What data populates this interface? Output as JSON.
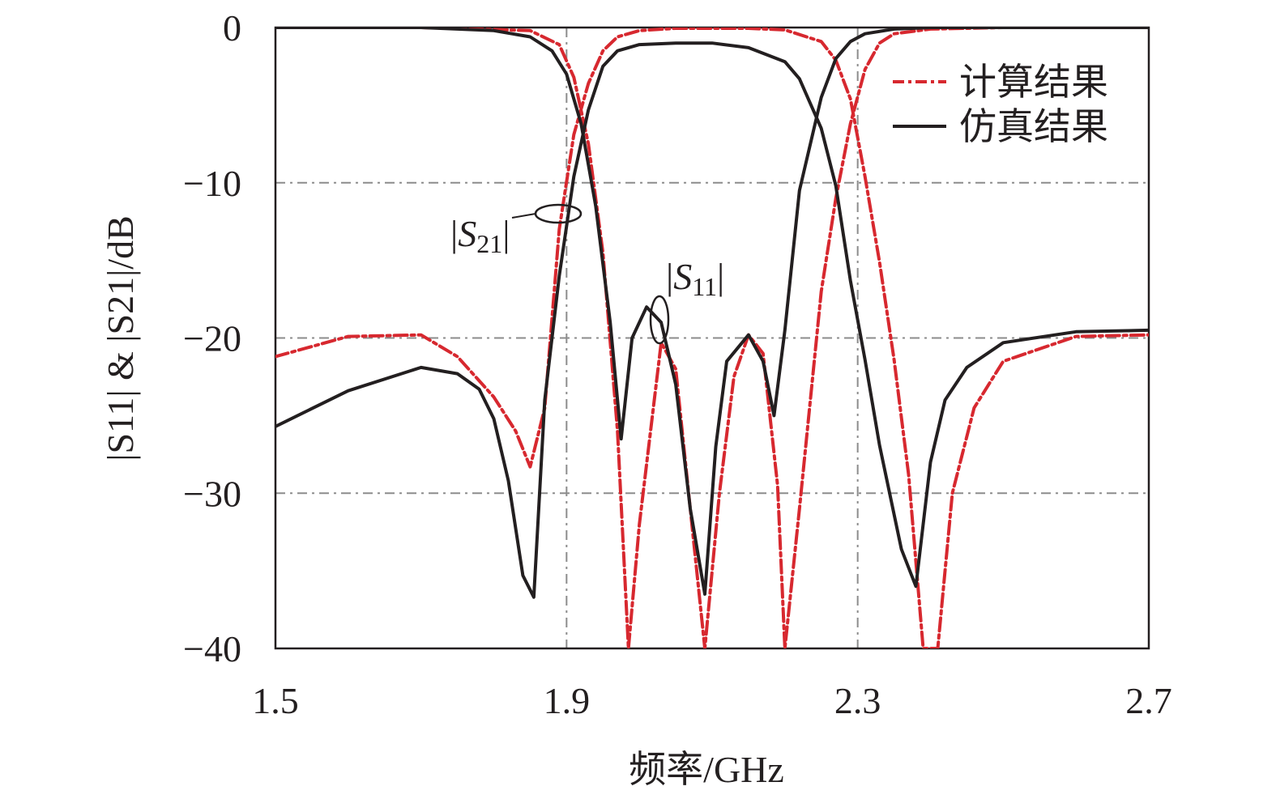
{
  "chart_data": {
    "type": "line",
    "xlabel": "频率/GHz",
    "ylabel": "|S11| & |S21|/dB",
    "xlim": [
      1.5,
      2.7
    ],
    "ylim": [
      -40,
      0
    ],
    "xticks": [
      1.5,
      1.9,
      2.3,
      2.7
    ],
    "xtick_labels": [
      "1.5",
      "1.9",
      "2.3",
      "2.7"
    ],
    "yticks": [
      0,
      -10,
      -20,
      -30,
      -40
    ],
    "ytick_labels": [
      "0",
      "−10",
      "−20",
      "−30",
      "−40"
    ],
    "grid": "dashed",
    "legend_position": "top-right",
    "colors": {
      "calc": "#d7282f",
      "sim": "#231f20",
      "grid": "#8c8c8c"
    },
    "annotations": [
      {
        "text": "|S21|",
        "x": 1.91,
        "y": -12.2
      },
      {
        "text": "|S11|",
        "x": 2.025,
        "y": -18.8
      }
    ],
    "series": [
      {
        "name": "计算结果",
        "style": "dashdot",
        "curves": [
          {
            "label": "S21",
            "x": [
              1.5,
              1.6,
              1.7,
              1.75,
              1.8,
              1.83,
              1.85,
              1.87,
              1.89,
              1.91,
              1.93,
              1.95,
              1.97,
              2.0,
              2.05,
              2.1,
              2.15,
              2.2,
              2.25,
              2.27,
              2.29,
              2.31,
              2.33,
              2.35,
              2.37,
              2.39,
              2.41,
              2.43,
              2.46,
              2.5,
              2.6,
              2.7
            ],
            "y": [
              -21.2,
              -19.9,
              -19.8,
              -21.2,
              -23.8,
              -26,
              -28.3,
              -24.5,
              -13,
              -6.9,
              -3.6,
              -1.5,
              -0.6,
              -0.2,
              -0.05,
              -0.05,
              -0.05,
              -0.15,
              -0.9,
              -2.1,
              -4.6,
              -9.6,
              -15.1,
              -21.4,
              -28.8,
              -40,
              -40,
              -30,
              -24.5,
              -21.5,
              -19.9,
              -19.8
            ]
          },
          {
            "label": "S11",
            "x": [
              1.5,
              1.7,
              1.85,
              1.89,
              1.91,
              1.93,
              1.95,
              1.97,
              1.985,
              2.0,
              2.03,
              2.05,
              2.07,
              2.09,
              2.11,
              2.13,
              2.15,
              2.17,
              2.19,
              2.2,
              2.22,
              2.25,
              2.27,
              2.29,
              2.31,
              2.33,
              2.35,
              2.4,
              2.5,
              2.7
            ],
            "y": [
              0,
              0,
              -0.2,
              -1.1,
              -3.2,
              -7.5,
              -14.5,
              -26,
              -40,
              -32,
              -20.3,
              -22,
              -31,
              -40,
              -30,
              -22.5,
              -19.8,
              -21,
              -29.5,
              -40,
              -31,
              -17,
              -11,
              -6.2,
              -2.7,
              -1,
              -0.4,
              -0.1,
              0,
              0
            ]
          }
        ]
      },
      {
        "name": "仿真结果",
        "style": "solid",
        "curves": [
          {
            "label": "S21",
            "x": [
              1.5,
              1.6,
              1.7,
              1.75,
              1.78,
              1.8,
              1.82,
              1.84,
              1.855,
              1.87,
              1.89,
              1.91,
              1.93,
              1.95,
              1.97,
              2.0,
              2.05,
              2.1,
              2.15,
              2.2,
              2.22,
              2.25,
              2.27,
              2.29,
              2.31,
              2.33,
              2.36,
              2.38,
              2.4,
              2.42,
              2.45,
              2.5,
              2.6,
              2.7
            ],
            "y": [
              -25.7,
              -23.4,
              -21.9,
              -22.3,
              -23.3,
              -25.2,
              -29.2,
              -35.3,
              -36.7,
              -24,
              -16,
              -9.6,
              -5.3,
              -2.5,
              -1.5,
              -1.1,
              -1,
              -1,
              -1.3,
              -2.2,
              -3.3,
              -6.5,
              -10.2,
              -16.3,
              -21.4,
              -26.9,
              -33.6,
              -36,
              -28,
              -24,
              -21.9,
              -20.3,
              -19.6,
              -19.5
            ]
          },
          {
            "label": "S11",
            "x": [
              1.5,
              1.7,
              1.8,
              1.85,
              1.88,
              1.9,
              1.92,
              1.94,
              1.96,
              1.975,
              1.99,
              2.01,
              2.03,
              2.05,
              2.07,
              2.09,
              2.105,
              2.12,
              2.15,
              2.17,
              2.185,
              2.2,
              2.22,
              2.25,
              2.27,
              2.29,
              2.31,
              2.35,
              2.4,
              2.5,
              2.7
            ],
            "y": [
              0,
              0,
              -0.2,
              -0.6,
              -1.5,
              -3,
              -6.2,
              -11.5,
              -19,
              -26.5,
              -20,
              -18,
              -19,
              -23,
              -31,
              -36.5,
              -27,
              -21.5,
              -19.8,
              -21.5,
              -25,
              -19.5,
              -10.5,
              -4.5,
              -2,
              -0.9,
              -0.4,
              -0.1,
              0,
              0,
              0
            ]
          }
        ]
      }
    ]
  }
}
